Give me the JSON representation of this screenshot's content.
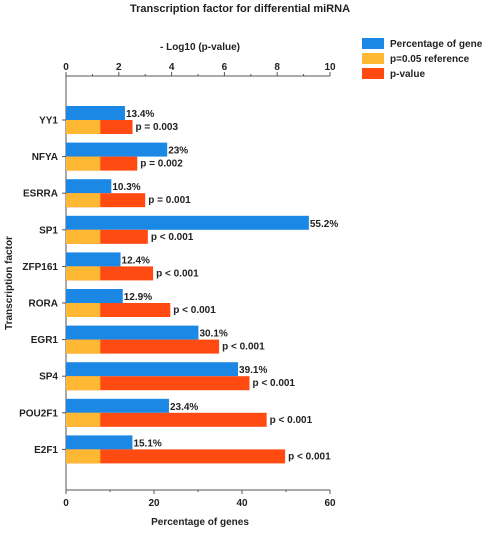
{
  "chart_data": {
    "type": "bar",
    "orientation": "horizontal",
    "title": "Transcription factor for differential miRNA",
    "ylabel": "Transcription factor",
    "xlabel": "Percentage of genes",
    "top_axis_label": "- Log10 (p-value)",
    "xlim": [
      0,
      60
    ],
    "x_ticks": [
      "0",
      "20",
      "40",
      "60"
    ],
    "top_xlim": [
      0,
      10
    ],
    "top_x_ticks": [
      "0",
      "2",
      "4",
      "6",
      "8",
      "10"
    ],
    "categories": [
      "YY1",
      "NFYA",
      "ESRRA",
      "SP1",
      "ZFP161",
      "RORA",
      "EGR1",
      "SP4",
      "POU2F1",
      "E2F1"
    ],
    "series": [
      {
        "name": "Percentage of gene",
        "color": "#1c88e6",
        "axis": "bottom",
        "values": [
          13.4,
          23,
          10.3,
          55.2,
          12.4,
          12.9,
          30.1,
          39.1,
          23.4,
          15.1
        ],
        "labels": [
          "13.4%",
          "23%",
          "10.3%",
          "55.2%",
          "12.4%",
          "12.9%",
          "30.1%",
          "39.1%",
          "23.4%",
          "15.1%"
        ]
      },
      {
        "name": "p=0.05 reference",
        "color": "#ffb833",
        "axis": "top",
        "values": [
          1.3,
          1.3,
          1.3,
          1.3,
          1.3,
          1.3,
          1.3,
          1.3,
          1.3,
          1.3
        ]
      },
      {
        "name": "p-value",
        "color": "#ff4a12",
        "axis": "top",
        "values": [
          2.52,
          2.7,
          3.0,
          3.1,
          3.3,
          3.95,
          5.8,
          6.95,
          7.6,
          8.3
        ],
        "labels": [
          "p = 0.003",
          "p = 0.002",
          "p = 0.001",
          "p < 0.001",
          "p < 0.001",
          "p < 0.001",
          "p < 0.001",
          "p < 0.001",
          "p < 0.001",
          "p < 0.001"
        ]
      }
    ],
    "legend_position": "top-right",
    "grid": false
  }
}
